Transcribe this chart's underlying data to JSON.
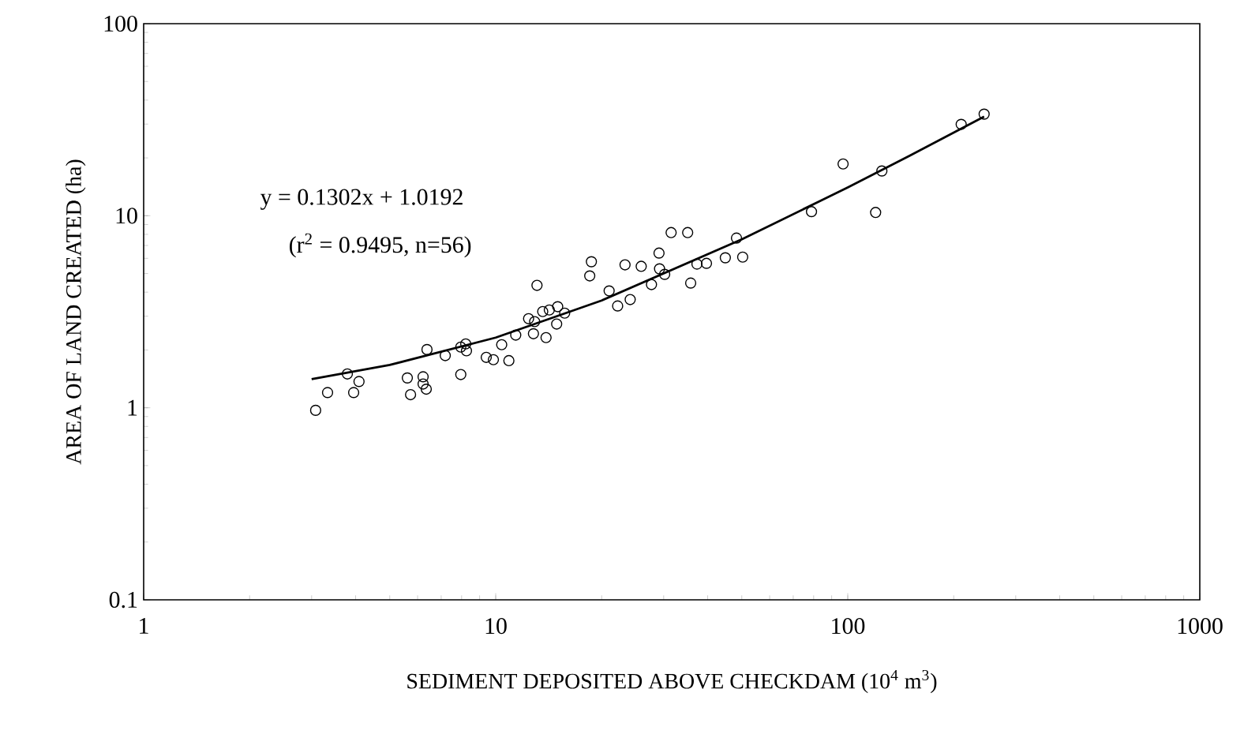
{
  "chart_data": {
    "type": "scatter",
    "xlabel": "SEDIMENT DEPOSITED ABOVE CHECKDAM (10$^{4}$ m$^{3}$)",
    "ylabel": "AREA OF LAND CREATED (ha)",
    "annotations": [
      "y = 0.1302x + 1.0192",
      "(r$^{2}$ = 0.9495, n=56)"
    ],
    "log": "xy",
    "grid": false,
    "xlim": [
      1,
      1000
    ],
    "ylim": [
      0.1,
      100
    ],
    "xticks": [
      1,
      10,
      100,
      1000
    ],
    "yticks": [
      0.1,
      1,
      10,
      100
    ],
    "series": [
      {
        "marker": "circle",
        "color": "#000000",
        "x": [
          3.08,
          3.33,
          3.79,
          3.95,
          4.09,
          5.61,
          5.73,
          6.22,
          6.22,
          6.35,
          6.38,
          7.19,
          7.96,
          7.96,
          8.22,
          8.26,
          9.4,
          9.85,
          10.4,
          10.9,
          11.4,
          12.4,
          12.8,
          12.9,
          13.1,
          13.6,
          13.9,
          14.2,
          14.9,
          15.0,
          15.7,
          18.5,
          18.7,
          21.0,
          22.2,
          23.3,
          24.1,
          25.9,
          27.7,
          29.1,
          29.2,
          30.2,
          31.5,
          35.1,
          35.8,
          37.3,
          39.7,
          44.9,
          48.3,
          50.3,
          78.9,
          97,
          120,
          125,
          210,
          244
        ],
        "values": [
          0.97,
          1.2,
          1.5,
          1.2,
          1.37,
          1.43,
          1.17,
          1.45,
          1.33,
          1.25,
          2.01,
          1.87,
          1.49,
          2.07,
          2.15,
          1.98,
          1.83,
          1.78,
          2.13,
          1.76,
          2.39,
          2.91,
          2.43,
          2.81,
          4.34,
          3.17,
          2.32,
          3.23,
          2.73,
          3.36,
          3.11,
          4.86,
          5.76,
          4.06,
          3.39,
          5.55,
          3.66,
          5.45,
          4.38,
          6.39,
          5.29,
          4.95,
          8.17,
          8.17,
          4.46,
          5.6,
          5.65,
          6.04,
          7.65,
          6.09,
          10.5,
          18.6,
          10.4,
          17.1,
          29.9,
          33.8
        ]
      },
      {
        "type": "line",
        "marker": "none",
        "line_style": "solid",
        "color": "#000000",
        "x": [
          3,
          5,
          10,
          20,
          50,
          100,
          150,
          244
        ],
        "values": [
          1.41,
          1.67,
          2.32,
          3.62,
          7.53,
          14.04,
          20.55,
          32.8
        ]
      }
    ]
  }
}
